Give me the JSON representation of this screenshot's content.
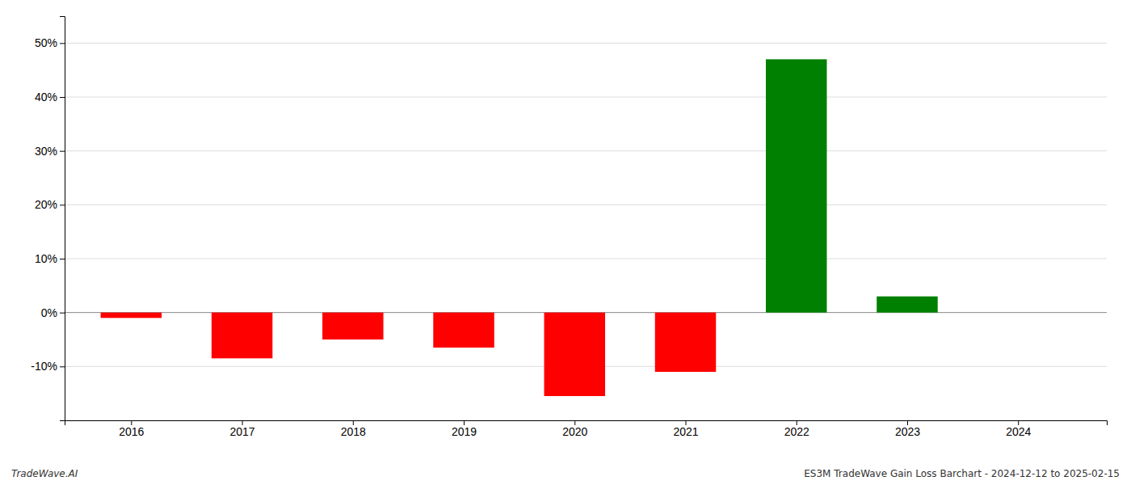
{
  "chart_data": {
    "type": "bar",
    "x": [
      2016,
      2017,
      2018,
      2019,
      2020,
      2021,
      2022,
      2023,
      2024
    ],
    "values": [
      -1.0,
      -8.5,
      -5.0,
      -6.5,
      -15.5,
      -11.0,
      47.0,
      3.0,
      0.0
    ],
    "colors": [
      "#ff0000",
      "#ff0000",
      "#ff0000",
      "#ff0000",
      "#ff0000",
      "#ff0000",
      "#008000",
      "#008000",
      "#ffffff"
    ],
    "xlim": [
      2015.4,
      2024.8
    ],
    "xticks": [
      2016,
      2017,
      2018,
      2019,
      2020,
      2021,
      2022,
      2023,
      2024
    ],
    "ylim": [
      -20,
      55
    ],
    "yticks": [
      {
        "value": -10,
        "label": "-10%"
      },
      {
        "value": 0,
        "label": "0%"
      },
      {
        "value": 10,
        "label": "10%"
      },
      {
        "value": 20,
        "label": "20%"
      },
      {
        "value": 30,
        "label": "30%"
      },
      {
        "value": 40,
        "label": "40%"
      },
      {
        "value": 50,
        "label": "50%"
      }
    ],
    "grid": true,
    "annotations": [
      "TradeWave.AI",
      "ES3M TradeWave Gain Loss Barchart - 2024-12-12 to 2025-02-15"
    ]
  }
}
